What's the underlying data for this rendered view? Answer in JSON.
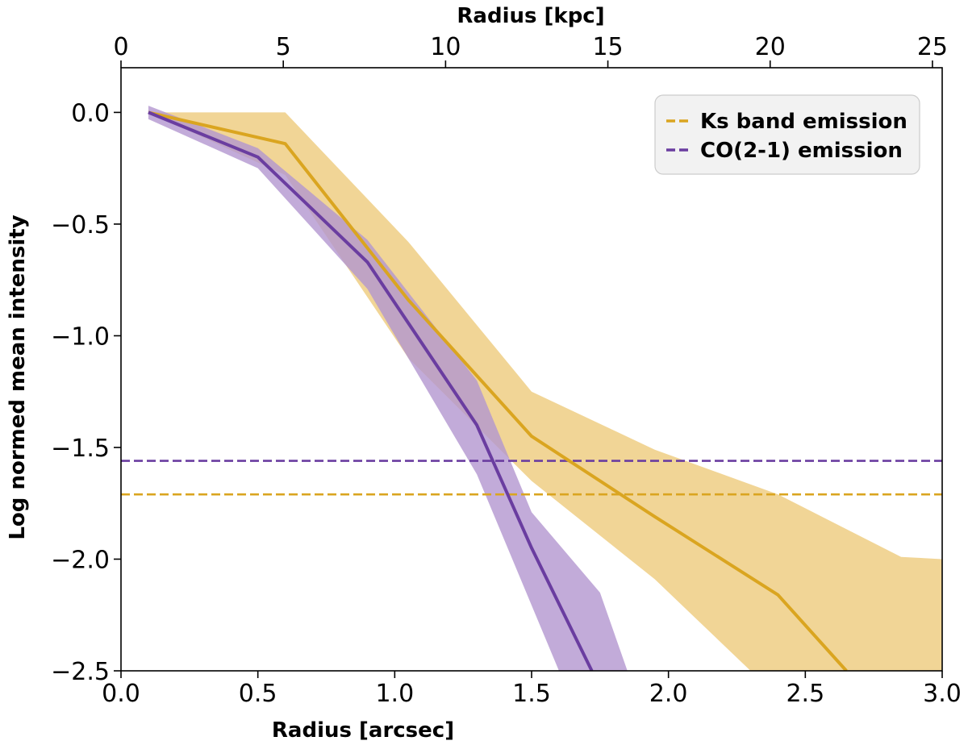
{
  "chart_data": {
    "type": "line",
    "xlabel": "Radius [arcsec]",
    "ylabel": "Log normed mean intensity",
    "secondary_xlabel": "Radius [kpc]",
    "xlim": [
      0.0,
      3.0
    ],
    "ylim": [
      -2.5,
      0.2
    ],
    "secondary_xlim": [
      0,
      25.3
    ],
    "xticks": [
      0.0,
      0.5,
      1.0,
      1.5,
      2.0,
      2.5,
      3.0
    ],
    "xtick_labels": [
      "0.0",
      "0.5",
      "1.0",
      "1.5",
      "2.0",
      "2.5",
      "3.0"
    ],
    "yticks": [
      0.0,
      -0.5,
      -1.0,
      -1.5,
      -2.0,
      -2.5
    ],
    "ytick_labels": [
      "0.0",
      "−0.5",
      "−1.0",
      "−1.5",
      "−2.0",
      "−2.5"
    ],
    "secondary_xticks": [
      0,
      5,
      10,
      15,
      20,
      25
    ],
    "secondary_xtick_labels": [
      "0",
      "5",
      "10",
      "15",
      "20",
      "25"
    ],
    "grid": false,
    "legend_position": "top-right",
    "series": [
      {
        "name": "Ks band emission",
        "color": "#DAA520",
        "band_color": "#EDCB7C",
        "x": [
          0.1,
          0.6,
          1.05,
          1.5,
          1.95,
          2.4,
          2.65
        ],
        "y": [
          0.0,
          -0.14,
          -0.84,
          -1.45,
          -1.81,
          -2.16,
          -2.5
        ],
        "band_upper_x": [
          0.1,
          0.6,
          1.05,
          1.5,
          1.95,
          2.4,
          2.85,
          3.0
        ],
        "band_upper": [
          0.0,
          0.0,
          -0.58,
          -1.25,
          -1.51,
          -1.71,
          -1.99,
          -2.0
        ],
        "band_lower_x": [
          0.1,
          0.6,
          1.05,
          1.5,
          1.95,
          2.3
        ],
        "band_lower": [
          0.0,
          -0.28,
          -1.1,
          -1.65,
          -2.09,
          -2.5
        ],
        "threshold": -1.71
      },
      {
        "name": "CO(2-1) emission",
        "color": "#6A3DA0",
        "band_color": "#B396D0",
        "x": [
          0.1,
          0.5,
          0.9,
          1.3,
          1.5,
          1.72
        ],
        "y": [
          0.0,
          -0.2,
          -0.67,
          -1.4,
          -1.95,
          -2.5
        ],
        "band_upper_x": [
          0.1,
          0.5,
          0.9,
          1.3,
          1.5,
          1.75,
          1.85
        ],
        "band_upper": [
          0.03,
          -0.16,
          -0.57,
          -1.2,
          -1.79,
          -2.15,
          -2.5
        ],
        "band_lower_x": [
          0.1,
          0.5,
          0.9,
          1.3,
          1.6
        ],
        "band_lower": [
          -0.03,
          -0.25,
          -0.79,
          -1.62,
          -2.5
        ],
        "threshold": -1.56
      }
    ]
  }
}
